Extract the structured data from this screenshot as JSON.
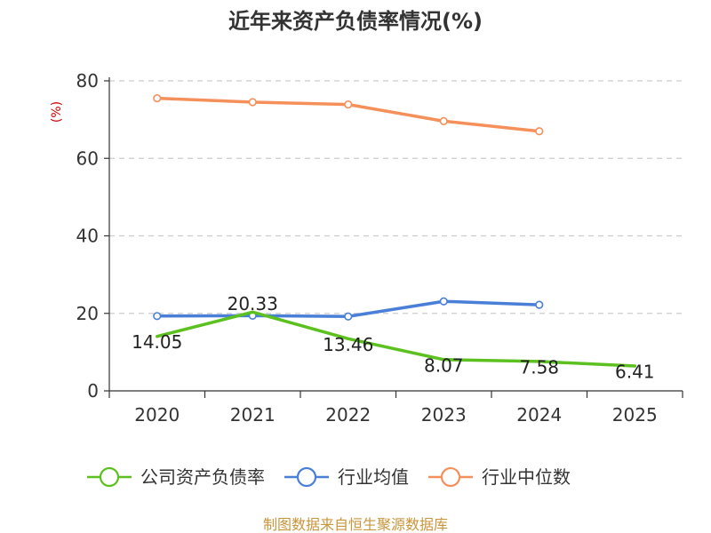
{
  "chart_data": {
    "type": "line",
    "title": "近年来资产负债率情况(%)",
    "ylabel": "(%)",
    "xlabel": "",
    "categories": [
      "2020",
      "2021",
      "2022",
      "2023",
      "2024",
      "2025"
    ],
    "ylim": [
      0,
      80
    ],
    "yticks": [
      0,
      20,
      40,
      60,
      80
    ],
    "grid": "horizontal-dashed",
    "legend_position": "bottom",
    "series": [
      {
        "name": "公司资产负债率",
        "color": "#5cc11f",
        "values": [
          14.05,
          20.33,
          13.46,
          8.07,
          7.58,
          6.41
        ],
        "data_labels": [
          "14.05",
          "20.33",
          "13.46",
          "8.07",
          "7.58",
          "6.41"
        ]
      },
      {
        "name": "行业均值",
        "color": "#4a7fd8",
        "values": [
          19.3,
          19.4,
          19.2,
          23.1,
          22.2,
          null
        ]
      },
      {
        "name": "行业中位数",
        "color": "#f5905a",
        "values": [
          75.5,
          74.5,
          73.9,
          69.6,
          67.0,
          null
        ]
      }
    ]
  },
  "source": "制图数据来自恒生聚源数据库",
  "colors": {
    "source": "#c8963c",
    "unit": "#d00000"
  }
}
